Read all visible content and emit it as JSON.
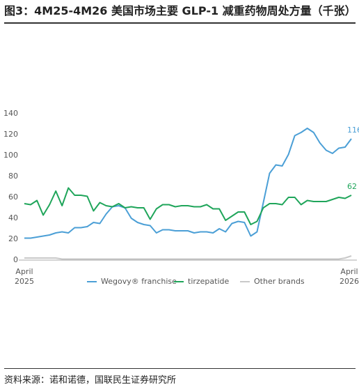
{
  "chart_data": {
    "type": "line",
    "title": "图3：4M25-4M26 美国市场主要 GLP-1 减重药物周处方量（千张）",
    "source": "资料来源：诺和诺德，国联民生证券研究所",
    "categories": [
      "April 2025",
      null,
      null,
      null,
      null,
      null,
      null,
      null,
      null,
      null,
      null,
      null,
      null,
      null,
      null,
      null,
      null,
      null,
      null,
      null,
      null,
      null,
      null,
      null,
      null,
      null,
      null,
      null,
      null,
      null,
      null,
      null,
      null,
      null,
      null,
      null,
      null,
      null,
      null,
      null,
      null,
      null,
      null,
      null,
      null,
      null,
      null,
      null,
      null,
      null,
      null,
      null,
      "April 2026"
    ],
    "series": [
      {
        "name": "Wegovy® franchise",
        "color": "#4b9fd6",
        "values": [
          21,
          21,
          22,
          23,
          24,
          26,
          27,
          26,
          31,
          31,
          32,
          36,
          35,
          44,
          51,
          52,
          50,
          40,
          36,
          34,
          33,
          26,
          29,
          29,
          28,
          28,
          28,
          26,
          27,
          27,
          26,
          30,
          27,
          35,
          37,
          36,
          23,
          27,
          55,
          83,
          91,
          90,
          101,
          119,
          122,
          126,
          122,
          112,
          105,
          102,
          107,
          108,
          116
        ]
      },
      {
        "name": "tirzepatide",
        "color": "#1fa55a",
        "values": [
          54,
          53,
          57,
          43,
          53,
          66,
          52,
          69,
          62,
          62,
          61,
          47,
          55,
          52,
          51,
          54,
          50,
          51,
          50,
          50,
          39,
          49,
          53,
          53,
          51,
          52,
          52,
          51,
          51,
          53,
          49,
          49,
          38,
          42,
          46,
          46,
          34,
          37,
          50,
          54,
          54,
          53,
          60,
          60,
          53,
          57,
          56,
          56,
          56,
          58,
          60,
          59,
          62
        ]
      },
      {
        "name": "Other brands",
        "color": "#c9c9c9",
        "values": [
          2,
          2,
          2,
          2,
          2,
          2,
          1,
          1,
          1,
          1,
          1,
          1,
          1,
          1,
          1,
          1,
          1,
          1,
          1,
          1,
          1,
          1,
          1,
          1,
          1,
          1,
          1,
          1,
          1,
          1,
          1,
          1,
          1,
          1,
          1,
          1,
          1,
          1,
          1,
          1,
          1,
          1,
          1,
          1,
          1,
          1,
          1,
          1,
          1,
          1,
          1,
          2,
          4
        ]
      }
    ],
    "ylim": [
      0,
      140
    ],
    "yticks": [
      0,
      20,
      40,
      60,
      80,
      100,
      120,
      140
    ],
    "grid": false,
    "legend": "bottom"
  }
}
